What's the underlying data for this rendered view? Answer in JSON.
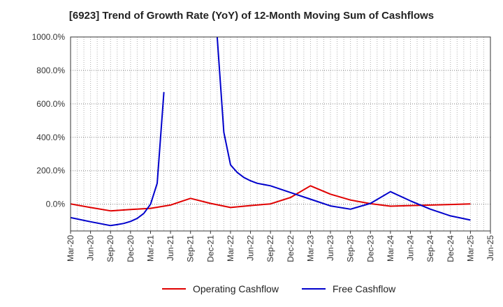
{
  "chart_data": {
    "type": "line",
    "title": "[6923]  Trend of Growth Rate (YoY) of 12-Month Moving Sum of Cashflows",
    "xlabel": "",
    "ylabel": "",
    "ylim": [
      -160,
      1000
    ],
    "y_ticks": [
      0,
      200,
      400,
      600,
      800,
      1000
    ],
    "y_tick_labels": [
      "0.0%",
      "200.0%",
      "400.0%",
      "600.0%",
      "800.0%",
      "1000.0%"
    ],
    "x_tick_labels": [
      "Mar-20",
      "Jun-20",
      "Sep-20",
      "Dec-20",
      "Mar-21",
      "Jun-21",
      "Sep-21",
      "Dec-21",
      "Mar-22",
      "Jun-22",
      "Sep-22",
      "Dec-22",
      "Mar-23",
      "Jun-23",
      "Sep-23",
      "Dec-23",
      "Mar-24",
      "Jun-24",
      "Sep-24",
      "Dec-24",
      "Mar-25",
      "Jun-25"
    ],
    "grid": true,
    "legend_position": "bottom",
    "series": [
      {
        "name": "Operating Cashflow",
        "color": "#e00000",
        "points": [
          {
            "x": "Mar-20",
            "y": 2
          },
          {
            "x": "Jun-20",
            "y": -20
          },
          {
            "x": "Sep-20",
            "y": -40
          },
          {
            "x": "Dec-20",
            "y": -32
          },
          {
            "x": "Mar-21",
            "y": -25
          },
          {
            "x": "Jun-21",
            "y": -5
          },
          {
            "x": "Sep-21",
            "y": 35
          },
          {
            "x": "Dec-21",
            "y": 5
          },
          {
            "x": "Mar-22",
            "y": -20
          },
          {
            "x": "Jun-22",
            "y": -8
          },
          {
            "x": "Sep-22",
            "y": 2
          },
          {
            "x": "Dec-22",
            "y": 40
          },
          {
            "x": "Mar-23",
            "y": 110
          },
          {
            "x": "Jun-23",
            "y": 60
          },
          {
            "x": "Sep-23",
            "y": 25
          },
          {
            "x": "Dec-23",
            "y": 3
          },
          {
            "x": "Mar-24",
            "y": -12
          },
          {
            "x": "Jun-24",
            "y": -8
          },
          {
            "x": "Sep-24",
            "y": -5
          },
          {
            "x": "Dec-24",
            "y": -2
          },
          {
            "x": "Mar-25",
            "y": 2
          }
        ]
      },
      {
        "name": "Free Cashflow",
        "color": "#0000cc",
        "segments": [
          [
            {
              "x": "Mar-20",
              "y": -80
            },
            {
              "x": "Jun-20",
              "y": -105
            },
            {
              "x": "Sep-20",
              "y": -128
            },
            {
              "x": "Oct-20",
              "y": -122
            },
            {
              "x": "Nov-20",
              "y": -115
            },
            {
              "x": "Dec-20",
              "y": -103
            },
            {
              "x": "Jan-21",
              "y": -85
            },
            {
              "x": "Feb-21",
              "y": -55
            },
            {
              "x": "Mar-21",
              "y": 0
            },
            {
              "x": "Apr-21",
              "y": 125
            },
            {
              "x": "May-21",
              "y": 670
            }
          ],
          [
            {
              "x": "Jan-22",
              "y": 1000
            },
            {
              "x": "Feb-22",
              "y": 430
            },
            {
              "x": "Mar-22",
              "y": 235
            },
            {
              "x": "Apr-22",
              "y": 190
            },
            {
              "x": "May-22",
              "y": 160
            },
            {
              "x": "Jun-22",
              "y": 140
            },
            {
              "x": "Jul-22",
              "y": 125
            },
            {
              "x": "Sep-22",
              "y": 110
            },
            {
              "x": "Dec-22",
              "y": 70
            },
            {
              "x": "Mar-23",
              "y": 30
            },
            {
              "x": "Jun-23",
              "y": -10
            },
            {
              "x": "Sep-23",
              "y": -30
            },
            {
              "x": "Dec-23",
              "y": 5
            },
            {
              "x": "Mar-24",
              "y": 75
            },
            {
              "x": "Jun-24",
              "y": 20
            },
            {
              "x": "Sep-24",
              "y": -30
            },
            {
              "x": "Dec-24",
              "y": -70
            },
            {
              "x": "Mar-25",
              "y": -95
            }
          ]
        ]
      }
    ]
  }
}
